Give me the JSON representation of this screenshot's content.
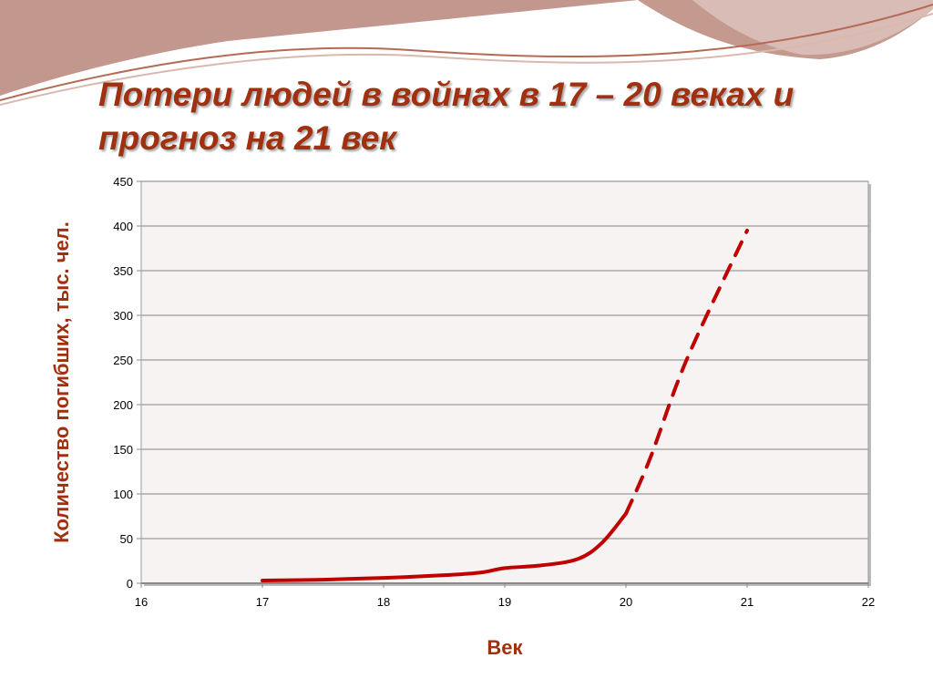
{
  "title_line1": "Потери людей в войнах в 17 – 20 веках и",
  "title_line2": "прогноз на 21 век",
  "chart_data": {
    "type": "line",
    "xlabel": "Век",
    "ylabel": "Количество погибших, тыс.  чел.",
    "xlim": [
      16,
      22
    ],
    "ylim": [
      0,
      450
    ],
    "xticks": [
      16,
      17,
      18,
      19,
      20,
      21,
      22
    ],
    "yticks": [
      0,
      50,
      100,
      150,
      200,
      250,
      300,
      350,
      400,
      450
    ],
    "grid": "horizontal",
    "series": [
      {
        "style": "solid",
        "color": "#c00000",
        "x": [
          17,
          17.5,
          18,
          18.5,
          18.8,
          19,
          19.3,
          19.6,
          19.8,
          20
        ],
        "y": [
          3,
          4,
          6,
          9,
          12,
          17,
          20,
          27,
          45,
          78
        ]
      },
      {
        "style": "dashed",
        "color": "#c00000",
        "x": [
          20,
          20.2,
          20.5,
          21
        ],
        "y": [
          78,
          140,
          250,
          395
        ]
      }
    ]
  },
  "colors": {
    "title": "#a0300f",
    "line": "#c00000",
    "plot_bg": "#f7f3f3"
  }
}
